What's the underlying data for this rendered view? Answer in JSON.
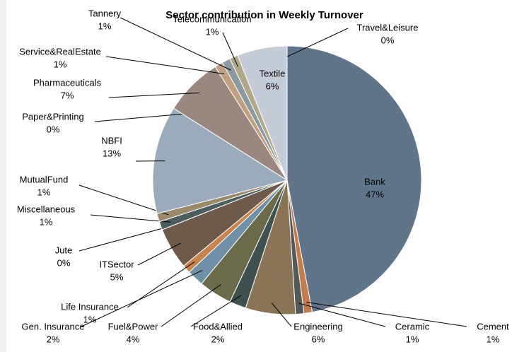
{
  "chart_data": {
    "type": "pie",
    "title": "Sector contribution in Weekly  Turnover",
    "categories": [
      "Bank",
      "Cement",
      "Ceramic",
      "Engineering",
      "Food&Allied",
      "Fuel&Power",
      "Gen. Insurance",
      "Life Insurance",
      "ITSector",
      "Jute",
      "Miscellaneous",
      "MutualFund",
      "NBFI",
      "Paper&Printing",
      "Pharmaceuticals",
      "Service&RealEstate",
      "Tannery",
      "Telecommunication",
      "Textile",
      "Travel&Leisure"
    ],
    "values": [
      47,
      1,
      1,
      6,
      2,
      4,
      2,
      1,
      5,
      0,
      1,
      1,
      13,
      0,
      7,
      1,
      1,
      1,
      6,
      0
    ],
    "value_labels": [
      "47%",
      "1%",
      "1%",
      "6%",
      "2%",
      "4%",
      "2%",
      "1%",
      "5%",
      "0%",
      "1%",
      "1%",
      "13%",
      "0%",
      "7%",
      "1%",
      "1%",
      "1%",
      "6%",
      "0%"
    ],
    "colors": [
      "#607589",
      "#c27c4e",
      "#55585a",
      "#8b7355",
      "#3f5050",
      "#6b6b4c",
      "#7090a8",
      "#c8844e",
      "#6e5a4a",
      "#a08060",
      "#4b5d5d",
      "#9a8a6a",
      "#9aacbc",
      "#c79070",
      "#9a8880",
      "#c0a080",
      "#8a9aa0",
      "#b0a888",
      "#c5ccd8",
      "#d8a080"
    ]
  }
}
